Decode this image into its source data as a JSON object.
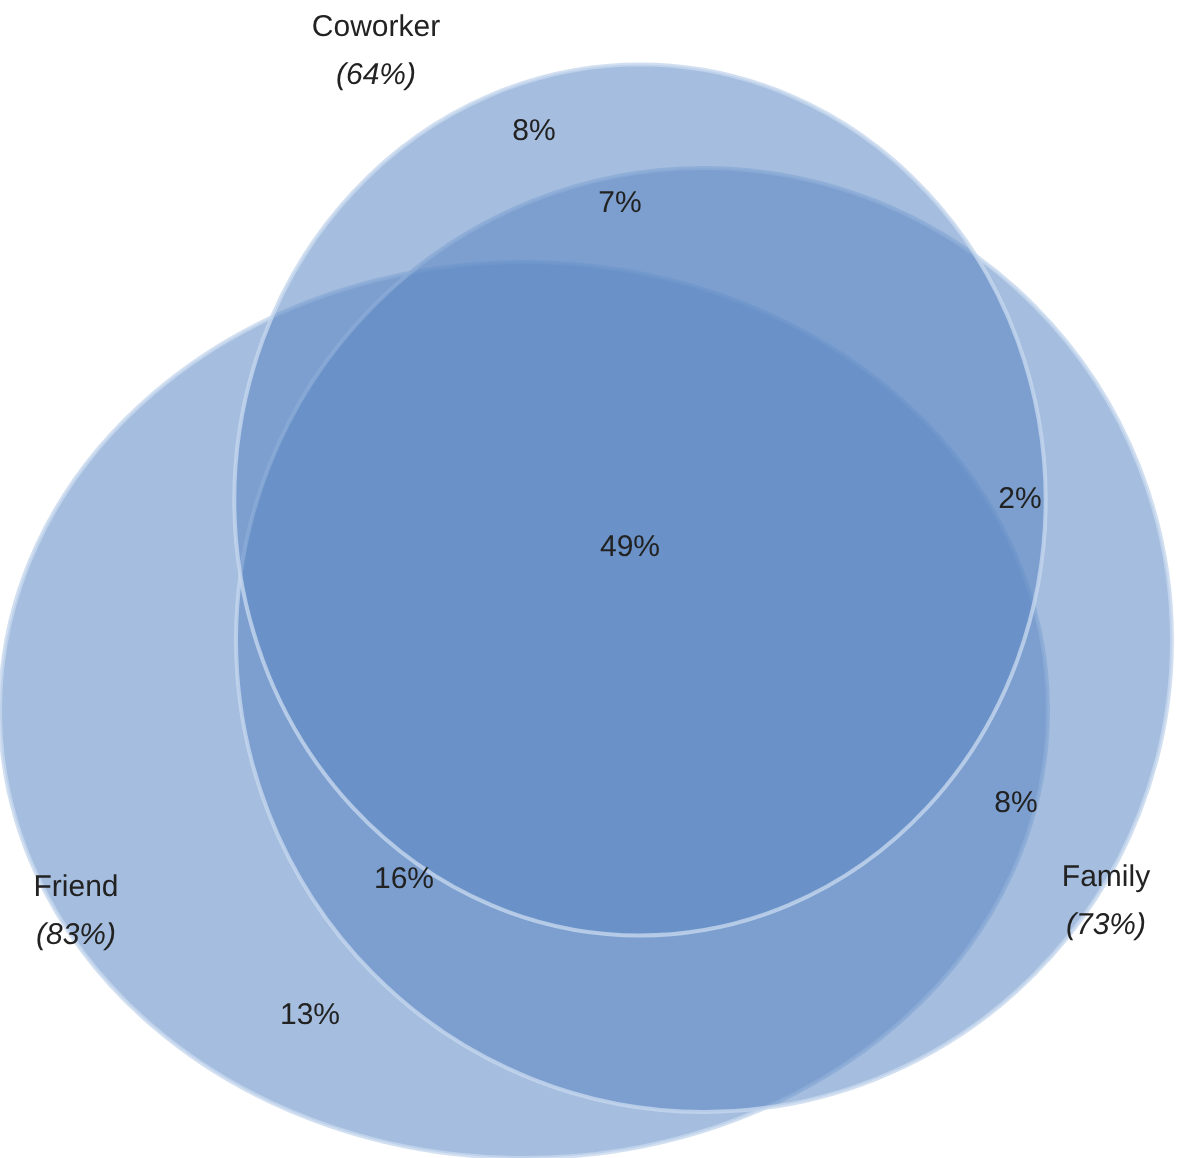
{
  "chart_data": {
    "type": "other",
    "categories": [
      "Coworker",
      "Friend",
      "Family"
    ],
    "values": [
      64,
      83,
      73
    ],
    "value_labels": [
      "(64%)",
      "(83%)",
      "(73%)"
    ],
    "colors": [
      "#5b86c2",
      "#5b86c2",
      "#5b86c2"
    ],
    "annotations": [
      "8%",
      "7%",
      "49%",
      "2%",
      "8%",
      "16%",
      "13%"
    ]
  }
}
